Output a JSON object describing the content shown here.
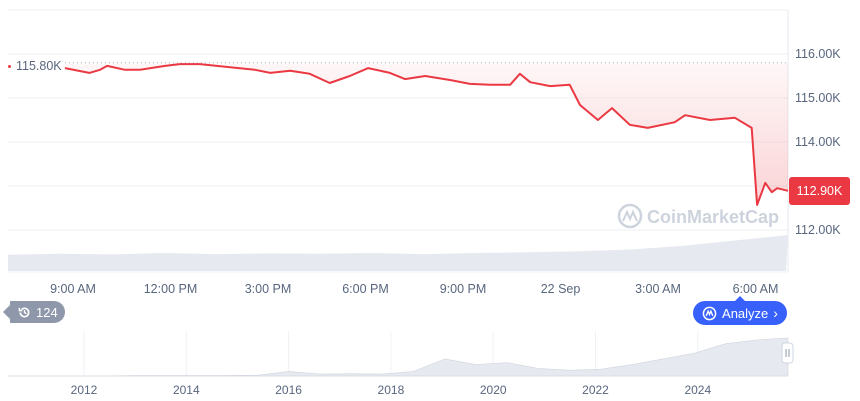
{
  "chart_data": {
    "type": "line",
    "ylim": [
      111.2,
      116.4
    ],
    "y_ticks": [
      "116.00K",
      "115.00K",
      "114.00K",
      "112.00K"
    ],
    "y_tick_values": [
      116,
      115,
      114,
      112
    ],
    "x_ticks": [
      "9:00 AM",
      "12:00 PM",
      "3:00 PM",
      "6:00 PM",
      "9:00 PM",
      "22 Sep",
      "3:00 AM",
      "6:00 AM"
    ],
    "reference_line": {
      "value": 115.8,
      "label": "115.80K"
    },
    "current": {
      "value": 112.9,
      "label": "112.90K"
    },
    "grid": true,
    "line_color": "#ea3943",
    "series": [
      {
        "points": [
          [
            "21 Sep 08:45",
            115.68
          ],
          [
            "21 Sep 09:30",
            115.57
          ],
          [
            "21 Sep 09:50",
            115.64
          ],
          [
            "21 Sep 10:03",
            115.73
          ],
          [
            "21 Sep 10:36",
            115.64
          ],
          [
            "21 Sep 11:04",
            115.64
          ],
          [
            "21 Sep 11:50",
            115.73
          ],
          [
            "21 Sep 12:17",
            115.77
          ],
          [
            "21 Sep 12:54",
            115.77
          ],
          [
            "21 Sep 13:50",
            115.7
          ],
          [
            "21 Sep 14:36",
            115.64
          ],
          [
            "21 Sep 15:04",
            115.57
          ],
          [
            "21 Sep 15:41",
            115.62
          ],
          [
            "21 Sep 16:17",
            115.55
          ],
          [
            "21 Sep 16:54",
            115.34
          ],
          [
            "21 Sep 17:31",
            115.5
          ],
          [
            "21 Sep 18:05",
            115.68
          ],
          [
            "21 Sep 18:45",
            115.57
          ],
          [
            "21 Sep 19:13",
            115.43
          ],
          [
            "21 Sep 19:50",
            115.5
          ],
          [
            "21 Sep 20:36",
            115.41
          ],
          [
            "21 Sep 21:13",
            115.32
          ],
          [
            "21 Sep 21:50",
            115.3
          ],
          [
            "21 Sep 22:27",
            115.3
          ],
          [
            "21 Sep 22:45",
            115.55
          ],
          [
            "21 Sep 23:04",
            115.36
          ],
          [
            "21 Sep 23:41",
            115.27
          ],
          [
            "22 Sep 00:17",
            115.3
          ],
          [
            "22 Sep 00:36",
            114.84
          ],
          [
            "22 Sep 01:09",
            114.5
          ],
          [
            "22 Sep 01:35",
            114.77
          ],
          [
            "22 Sep 02:08",
            114.39
          ],
          [
            "22 Sep 02:41",
            114.32
          ],
          [
            "22 Sep 03:31",
            114.45
          ],
          [
            "22 Sep 03:50",
            114.61
          ],
          [
            "22 Sep 04:36",
            114.5
          ],
          [
            "22 Sep 05:22",
            114.55
          ],
          [
            "22 Sep 05:53",
            114.32
          ],
          [
            "22 Sep 06:03",
            112.57
          ],
          [
            "22 Sep 06:18",
            113.07
          ],
          [
            "22 Sep 06:30",
            112.86
          ],
          [
            "22 Sep 06:40",
            112.95
          ],
          [
            "22 Sep 07:00",
            112.89
          ]
        ]
      }
    ],
    "volume_relative": [
      0.45,
      0.48,
      0.46,
      0.5,
      0.47,
      0.49,
      0.48,
      0.5,
      0.47,
      0.5,
      0.52,
      0.55,
      0.6,
      0.7,
      0.85,
      1.0
    ],
    "navigator": {
      "x_ticks": [
        "2012",
        "2014",
        "2016",
        "2018",
        "2020",
        "2022",
        "2024"
      ],
      "relative_values": [
        0,
        0,
        0,
        0,
        0.01,
        0.01,
        0.01,
        0.01,
        0.02,
        0.12,
        0.05,
        0.06,
        0.05,
        0.12,
        0.45,
        0.3,
        0.35,
        0.2,
        0.15,
        0.18,
        0.3,
        0.45,
        0.6,
        0.85,
        0.95,
        1.0
      ]
    }
  },
  "watermark": "CoinMarketCap",
  "history_badge": {
    "count": "124",
    "icon": "history-icon"
  },
  "analyze_button": {
    "label": "Analyze",
    "icon": "cmc-ai-icon",
    "color": "#3861fb"
  }
}
